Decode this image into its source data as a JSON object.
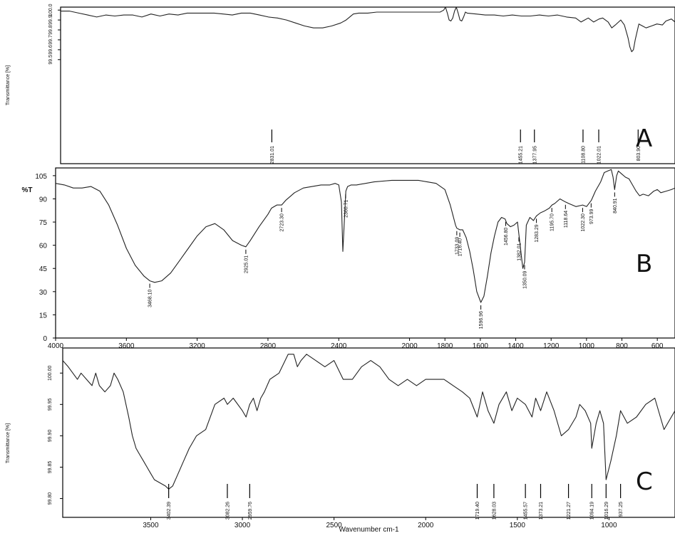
{
  "chart_data": [
    {
      "type": "line",
      "panel_label": "A",
      "ylabel": "Transmittance [%]",
      "x_range": [
        4000,
        600
      ],
      "y_range": [
        98.45,
        100.03
      ],
      "y_ticks": [
        "100.0",
        "99.9",
        "99.8",
        "99.7",
        "99.6",
        "99.5"
      ],
      "y_tick_values": [
        100.0,
        99.9,
        99.8,
        99.7,
        99.6,
        99.5
      ],
      "trace_color": "#222222",
      "series": [
        {
          "x": [
            4000,
            3950,
            3900,
            3850,
            3800,
            3750,
            3700,
            3650,
            3600,
            3550,
            3500,
            3450,
            3400,
            3350,
            3300,
            3250,
            3200,
            3150,
            3100,
            3050,
            3000,
            2950,
            2900,
            2850,
            2800,
            2750,
            2700,
            2650,
            2600,
            2550,
            2500,
            2450,
            2420,
            2400,
            2380,
            2350,
            2300,
            2250,
            2200,
            2150,
            2100,
            2050,
            2000,
            1950,
            1900,
            1880,
            1870,
            1860,
            1850,
            1840,
            1830,
            1820,
            1810,
            1800,
            1790,
            1780,
            1770,
            1760,
            1750,
            1700,
            1650,
            1600,
            1550,
            1500,
            1450,
            1400,
            1350,
            1300,
            1250,
            1200,
            1150,
            1120,
            1100,
            1080,
            1050,
            1020,
            1000,
            970,
            950,
            930,
            900,
            880,
            860,
            850,
            840,
            830,
            820,
            800,
            790,
            780,
            760,
            730,
            700,
            670,
            650,
            620,
            600
          ],
          "y": [
            99.99,
            99.99,
            99.97,
            99.95,
            99.93,
            99.95,
            99.94,
            99.95,
            99.95,
            99.93,
            99.96,
            99.94,
            99.96,
            99.95,
            99.97,
            99.97,
            99.97,
            99.97,
            99.96,
            99.95,
            99.97,
            99.97,
            99.95,
            99.93,
            99.92,
            99.9,
            99.87,
            99.84,
            99.82,
            99.82,
            99.84,
            99.87,
            99.9,
            99.93,
            99.96,
            99.97,
            99.97,
            99.98,
            99.98,
            99.98,
            99.98,
            99.98,
            99.98,
            99.98,
            99.98,
            100.0,
            100.03,
            99.97,
            99.9,
            99.89,
            99.92,
            99.99,
            100.03,
            99.97,
            99.9,
            99.89,
            99.93,
            99.98,
            99.97,
            99.96,
            99.95,
            99.95,
            99.94,
            99.95,
            99.94,
            99.94,
            99.95,
            99.94,
            99.95,
            99.93,
            99.92,
            99.88,
            99.9,
            99.92,
            99.88,
            99.91,
            99.92,
            99.88,
            99.82,
            99.85,
            99.9,
            99.85,
            99.72,
            99.63,
            99.58,
            99.6,
            99.7,
            99.86,
            99.85,
            99.84,
            99.82,
            99.84,
            99.86,
            99.85,
            99.89,
            99.91,
            99.88
          ]
        }
      ],
      "peaks": [
        "2831.01",
        "1455.21",
        "1377.95",
        "1108.80",
        "1022.01",
        "803.90"
      ],
      "peak_x": [
        2831,
        1455,
        1378,
        1109,
        1022,
        804
      ]
    },
    {
      "type": "line",
      "panel_label": "B",
      "ylabel": "%T",
      "x_range": [
        4000,
        500
      ],
      "x_ticks": [
        "4000",
        "3600",
        "3200",
        "2800",
        "2400",
        "2000",
        "1800",
        "1600",
        "1400",
        "1200",
        "1000",
        "800",
        "600"
      ],
      "x_tick_values": [
        4000,
        3600,
        3200,
        2800,
        2400,
        2000,
        1800,
        1600,
        1400,
        1200,
        1000,
        800,
        600
      ],
      "y_range": [
        0,
        110
      ],
      "y_ticks": [
        "105",
        "90",
        "75",
        "60",
        "45",
        "30",
        "15",
        "0"
      ],
      "y_tick_values": [
        105,
        90,
        75,
        60,
        45,
        30,
        15,
        0
      ],
      "trace_color": "#222222",
      "series": [
        {
          "x": [
            4000,
            3950,
            3900,
            3850,
            3800,
            3750,
            3700,
            3650,
            3600,
            3550,
            3500,
            3468,
            3440,
            3400,
            3350,
            3300,
            3250,
            3200,
            3150,
            3100,
            3050,
            3000,
            2950,
            2925,
            2900,
            2850,
            2800,
            2780,
            2750,
            2723,
            2700,
            2650,
            2600,
            2550,
            2500,
            2450,
            2420,
            2400,
            2385,
            2377,
            2360,
            2350,
            2330,
            2300,
            2200,
            2100,
            2000,
            1950,
            1900,
            1850,
            1800,
            1770,
            1740,
            1733,
            1716,
            1700,
            1680,
            1660,
            1640,
            1620,
            1597,
            1580,
            1560,
            1540,
            1520,
            1500,
            1480,
            1460,
            1450,
            1430,
            1410,
            1390,
            1382,
            1370,
            1360,
            1350,
            1340,
            1320,
            1300,
            1283,
            1260,
            1240,
            1210,
            1195,
            1180,
            1150,
            1119,
            1100,
            1060,
            1022,
            1000,
            973,
            950,
            920,
            900,
            880,
            860,
            850,
            841,
            830,
            820,
            800,
            780,
            760,
            740,
            720,
            700,
            680,
            650,
            620,
            600,
            580,
            550,
            520,
            500
          ],
          "y": [
            100,
            99,
            97,
            97,
            98,
            95,
            86,
            73,
            58,
            47,
            40,
            37,
            36,
            37,
            42,
            50,
            58,
            66,
            72,
            74,
            70,
            63,
            60,
            59,
            63,
            72,
            80,
            84,
            86,
            86,
            89,
            94,
            97,
            98,
            99,
            99,
            100,
            99,
            88,
            56,
            95,
            98,
            99,
            99,
            101,
            102,
            102,
            102,
            101,
            100,
            96,
            86,
            73,
            71,
            70,
            70,
            65,
            56,
            44,
            30,
            23,
            27,
            40,
            55,
            66,
            75,
            78,
            77,
            74,
            72,
            73,
            75,
            67,
            55,
            45,
            49,
            73,
            78,
            76,
            79,
            81,
            82,
            84,
            86,
            87,
            90,
            88,
            87,
            85,
            86,
            85,
            89,
            95,
            101,
            107,
            108,
            109,
            104,
            96,
            105,
            108,
            106,
            104,
            103,
            99,
            95,
            92,
            93,
            92,
            95,
            96,
            94,
            95,
            96,
            97
          ]
        }
      ],
      "peaks": [
        "3468.10",
        "2925.01",
        "2723.30",
        "2360.71",
        "1733.09",
        "1716.40",
        "1596.96",
        "1456.80",
        "1382.01",
        "1350.09",
        "1283.29",
        "1195.70",
        "1118.64",
        "1022.30",
        "973.99",
        "840.91"
      ],
      "peak_x": [
        3468,
        2925,
        2723,
        2361,
        1733,
        1716,
        1597,
        1457,
        1382,
        1350,
        1283,
        1196,
        1119,
        1022,
        974,
        841
      ]
    },
    {
      "type": "line",
      "panel_label": "C",
      "ylabel": "Transmittance [%]",
      "xlabel": "Wavenumber cm-1",
      "x_range": [
        3980,
        640
      ],
      "x_ticks": [
        "3500",
        "3000",
        "2500",
        "2000",
        "1500",
        "1000"
      ],
      "x_tick_values": [
        3500,
        3000,
        2500,
        2000,
        1500,
        1000
      ],
      "y_range": [
        99.77,
        100.04
      ],
      "y_ticks": [
        "100.00",
        "99.95",
        "99.90",
        "99.85",
        "99.80"
      ],
      "y_tick_values": [
        100.0,
        99.95,
        99.9,
        99.85,
        99.8
      ],
      "trace_color": "#222222",
      "series": [
        {
          "x": [
            3980,
            3950,
            3900,
            3880,
            3850,
            3820,
            3800,
            3780,
            3750,
            3720,
            3700,
            3680,
            3650,
            3620,
            3600,
            3580,
            3560,
            3540,
            3520,
            3500,
            3480,
            3450,
            3420,
            3402,
            3380,
            3350,
            3320,
            3290,
            3250,
            3200,
            3150,
            3100,
            3082,
            3050,
            3000,
            2980,
            2960,
            2940,
            2920,
            2900,
            2880,
            2850,
            2800,
            2750,
            2720,
            2700,
            2680,
            2650,
            2600,
            2550,
            2500,
            2450,
            2400,
            2350,
            2300,
            2250,
            2200,
            2150,
            2100,
            2050,
            2000,
            1950,
            1900,
            1850,
            1800,
            1760,
            1719,
            1690,
            1660,
            1628,
            1600,
            1560,
            1530,
            1500,
            1456,
            1420,
            1400,
            1373,
            1340,
            1300,
            1260,
            1221,
            1180,
            1160,
            1130,
            1100,
            1094,
            1070,
            1050,
            1030,
            1016,
            990,
            960,
            937,
            900,
            850,
            800,
            750,
            700,
            640
          ],
          "y": [
            100.02,
            100.01,
            99.99,
            100.0,
            99.99,
            99.98,
            100.0,
            99.98,
            99.97,
            99.98,
            100.0,
            99.99,
            99.97,
            99.93,
            99.9,
            99.88,
            99.87,
            99.86,
            99.85,
            99.84,
            99.83,
            99.825,
            99.82,
            99.815,
            99.82,
            99.84,
            99.86,
            99.88,
            99.9,
            99.91,
            99.95,
            99.96,
            99.95,
            99.96,
            99.94,
            99.93,
            99.95,
            99.96,
            99.94,
            99.96,
            99.97,
            99.99,
            100.0,
            100.03,
            100.03,
            100.01,
            100.02,
            100.03,
            100.02,
            100.01,
            100.02,
            99.99,
            99.99,
            100.01,
            100.02,
            100.01,
            99.99,
            99.98,
            99.99,
            99.98,
            99.99,
            99.99,
            99.99,
            99.98,
            99.97,
            99.96,
            99.93,
            99.97,
            99.94,
            99.92,
            99.95,
            99.97,
            99.94,
            99.96,
            99.95,
            99.93,
            99.96,
            99.94,
            99.97,
            99.94,
            99.9,
            99.91,
            99.93,
            99.95,
            99.94,
            99.92,
            99.88,
            99.92,
            99.94,
            99.92,
            99.83,
            99.86,
            99.9,
            99.94,
            99.92,
            99.93,
            99.95,
            99.96,
            99.91,
            99.94
          ]
        }
      ],
      "peaks": [
        "3402.39",
        "3082.26",
        "2959.76",
        "1719.40",
        "1628.03",
        "1455.57",
        "1373.21",
        "1221.27",
        "1094.19",
        "1016.29",
        "937.25"
      ],
      "peak_x": [
        3402,
        3082,
        2960,
        1719,
        1628,
        1456,
        1373,
        1221,
        1094,
        1016,
        937
      ]
    }
  ]
}
